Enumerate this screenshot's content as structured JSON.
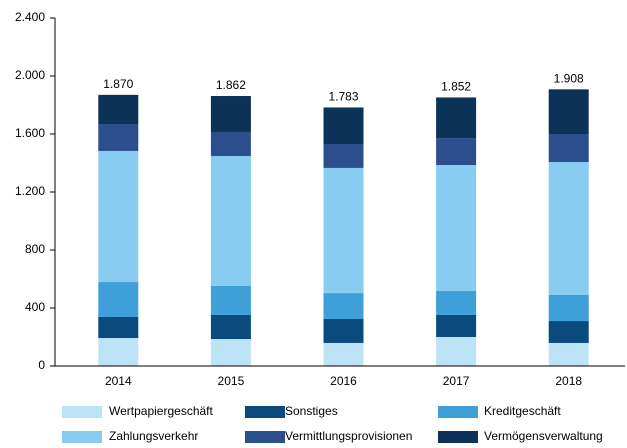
{
  "chart_data": {
    "type": "stacked_bar",
    "categories": [
      "2014",
      "2015",
      "2016",
      "2017",
      "2018"
    ],
    "series": [
      {
        "name": "Wertpapiergeschäft",
        "color": "#bde3f7",
        "values": [
          193,
          186,
          159,
          200,
          159
        ]
      },
      {
        "name": "Sonstiges",
        "color": "#0b4a7c",
        "values": [
          145,
          166,
          165,
          152,
          151
        ]
      },
      {
        "name": "Kreditgeschäft",
        "color": "#3f9fd8",
        "values": [
          241,
          200,
          179,
          165,
          180
        ]
      },
      {
        "name": "Zahlungsverkehr",
        "color": "#88cdf1",
        "values": [
          904,
          896,
          863,
          869,
          917
        ]
      },
      {
        "name": "Vermittlungsprovisionen",
        "color": "#2b4f8c",
        "values": [
          186,
          166,
          165,
          186,
          193
        ]
      },
      {
        "name": "Vermögensverwaltung",
        "color": "#0c3257",
        "values": [
          201,
          248,
          252,
          280,
          308
        ]
      }
    ],
    "totals": {
      "values": [
        1870,
        1862,
        1783,
        1852,
        1908
      ],
      "value_labels": [
        "1.870",
        "1.862",
        "1.783",
        "1.852",
        "1.908"
      ]
    },
    "ylim": [
      0,
      2400
    ],
    "yticks": [
      0,
      400,
      800,
      {
        "value": 1200,
        "label": "1.200"
      },
      {
        "value": 1600,
        "label": "1.600"
      },
      {
        "value": 2000,
        "label": "2.000"
      },
      {
        "value": 2400,
        "label": "2.400"
      }
    ],
    "grid": false
  }
}
